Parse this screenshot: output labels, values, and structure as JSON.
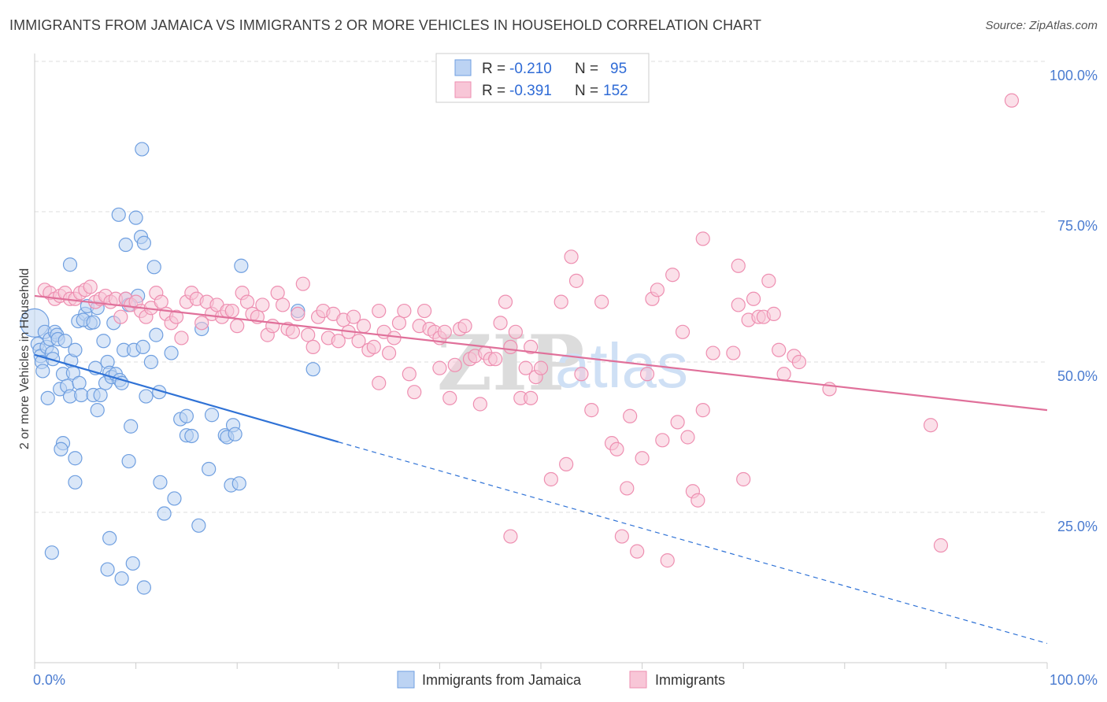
{
  "header": {
    "title": "IMMIGRANTS FROM JAMAICA VS IMMIGRANTS 2 OR MORE VEHICLES IN HOUSEHOLD CORRELATION CHART",
    "source": "Source: ZipAtlas.com"
  },
  "watermark": {
    "zip": "ZIP",
    "atlas": "atlas"
  },
  "colors": {
    "blue": "#6f9fe0",
    "blue_fill": "#bcd3f3",
    "blue_line": "#2f72d6",
    "pink": "#ee8fb1",
    "pink_fill": "#f8c6d7",
    "pink_line": "#e0709a",
    "grid": "#dddddd"
  },
  "legend": {
    "r_label": "R =",
    "n_label": "N =",
    "rows": [
      {
        "series": "jamaica",
        "r": "-0.210",
        "n": "95"
      },
      {
        "series": "immigrants",
        "r": "-0.391",
        "n": "152"
      }
    ]
  },
  "chart_data": {
    "type": "scatter",
    "title": "IMMIGRANTS FROM JAMAICA VS IMMIGRANTS 2 OR MORE VEHICLES IN HOUSEHOLD CORRELATION CHART",
    "xlabel": "",
    "ylabel": "2 or more Vehicles in Household",
    "xlim": [
      0,
      100
    ],
    "ylim": [
      0,
      100
    ],
    "x_tick_labels": [
      {
        "value": 0,
        "label": "0.0%"
      },
      {
        "value": 100,
        "label": "100.0%"
      }
    ],
    "y_tick_labels": [
      {
        "value": 25,
        "label": "25.0%"
      },
      {
        "value": 50,
        "label": "50.0%"
      },
      {
        "value": 75,
        "label": "75.0%"
      },
      {
        "value": 100,
        "label": "100.0%"
      }
    ],
    "series": [
      {
        "name": "Immigrants from Jamaica",
        "color": "blue",
        "trend": {
          "x0": 0,
          "y0": 51.2,
          "x1": 30,
          "y1": 36.7,
          "dash_to": 100,
          "dash_y": 3.2
        },
        "points": [
          [
            0,
            56.5
          ],
          [
            0.3,
            53
          ],
          [
            0.5,
            52
          ],
          [
            0.6,
            51
          ],
          [
            0.7,
            50
          ],
          [
            0.8,
            48.5
          ],
          [
            1,
            55
          ],
          [
            1.2,
            52.5
          ],
          [
            1.3,
            44
          ],
          [
            1.5,
            53.8
          ],
          [
            1.7,
            51.5
          ],
          [
            1.8,
            50.5
          ],
          [
            2,
            55
          ],
          [
            2.2,
            54.5
          ],
          [
            2.3,
            53.8
          ],
          [
            2.5,
            45.5
          ],
          [
            2.8,
            48
          ],
          [
            3,
            53.5
          ],
          [
            3.2,
            46
          ],
          [
            3.5,
            44.3
          ],
          [
            3.6,
            50.2
          ],
          [
            3.8,
            48.2
          ],
          [
            4,
            52
          ],
          [
            4.3,
            56.8
          ],
          [
            4.4,
            46.5
          ],
          [
            4.6,
            44.5
          ],
          [
            5,
            58
          ],
          [
            5.2,
            59.3
          ],
          [
            5.5,
            56.5
          ],
          [
            5.8,
            44.5
          ],
          [
            6,
            49
          ],
          [
            6.2,
            42
          ],
          [
            6.5,
            44.5
          ],
          [
            6.8,
            53.5
          ],
          [
            7,
            46.5
          ],
          [
            7.2,
            50
          ],
          [
            7.4,
            48.2
          ],
          [
            7.6,
            47.5
          ],
          [
            7.8,
            56.5
          ],
          [
            8,
            48
          ],
          [
            8.4,
            47
          ],
          [
            8.6,
            46.5
          ],
          [
            8.8,
            52
          ],
          [
            9,
            60.5
          ],
          [
            9.3,
            59.5
          ],
          [
            9.5,
            39.3
          ],
          [
            9.8,
            52
          ],
          [
            10.2,
            61
          ],
          [
            10.7,
            52.5
          ],
          [
            11,
            44.3
          ],
          [
            11.5,
            50
          ],
          [
            12,
            54.5
          ],
          [
            12.3,
            45
          ],
          [
            13.5,
            51.5
          ],
          [
            14.4,
            40.5
          ],
          [
            15,
            41
          ],
          [
            15,
            37.8
          ],
          [
            15.5,
            37.7
          ],
          [
            16.5,
            55.5
          ],
          [
            17.5,
            41.2
          ],
          [
            17.2,
            32.2
          ],
          [
            18.8,
            37.8
          ],
          [
            19,
            37.5
          ],
          [
            19.4,
            29.5
          ],
          [
            19.6,
            39.5
          ],
          [
            19.8,
            38
          ],
          [
            20.2,
            29.8
          ],
          [
            20.4,
            66
          ],
          [
            3.5,
            66.2
          ],
          [
            4.8,
            57
          ],
          [
            5.8,
            56.6
          ],
          [
            6.2,
            59
          ],
          [
            8.3,
            74.5
          ],
          [
            9,
            69.5
          ],
          [
            10,
            74
          ],
          [
            10.5,
            70.8
          ],
          [
            10.8,
            69.8
          ],
          [
            11.8,
            65.8
          ],
          [
            10.6,
            85.4
          ],
          [
            2.8,
            36.5
          ],
          [
            2.6,
            35.5
          ],
          [
            4,
            34
          ],
          [
            4,
            30
          ],
          [
            9.3,
            33.5
          ],
          [
            12.4,
            30
          ],
          [
            12.8,
            24.8
          ],
          [
            13.8,
            27.3
          ],
          [
            16.2,
            22.8
          ],
          [
            7.4,
            20.7
          ],
          [
            1.7,
            18.3
          ],
          [
            7.2,
            15.5
          ],
          [
            8.6,
            14
          ],
          [
            9.7,
            16.5
          ],
          [
            10.8,
            12.5
          ],
          [
            26,
            58.5
          ],
          [
            27.5,
            48.8
          ]
        ]
      },
      {
        "name": "Immigrants",
        "color": "pink",
        "trend": {
          "x0": 0,
          "y0": 61,
          "x1": 100,
          "y1": 42
        },
        "points": [
          [
            1,
            62
          ],
          [
            1.5,
            61.5
          ],
          [
            2,
            60.5
          ],
          [
            2.5,
            61
          ],
          [
            3,
            61.5
          ],
          [
            3.5,
            60.5
          ],
          [
            4,
            60.5
          ],
          [
            4.5,
            61.5
          ],
          [
            5,
            62
          ],
          [
            5.5,
            62.5
          ],
          [
            6,
            60
          ],
          [
            6.5,
            60.5
          ],
          [
            7,
            61
          ],
          [
            7.5,
            60
          ],
          [
            8,
            60.5
          ],
          [
            8.5,
            57.5
          ],
          [
            9,
            60.5
          ],
          [
            9.5,
            59.5
          ],
          [
            10,
            60
          ],
          [
            10.5,
            58.5
          ],
          [
            11,
            57.5
          ],
          [
            11.5,
            59
          ],
          [
            12,
            61.5
          ],
          [
            12.5,
            60
          ],
          [
            13,
            58
          ],
          [
            13.5,
            56.5
          ],
          [
            14,
            57.5
          ],
          [
            14.5,
            54
          ],
          [
            15,
            60
          ],
          [
            15.5,
            61.5
          ],
          [
            16,
            60.5
          ],
          [
            16.5,
            56.5
          ],
          [
            17,
            60
          ],
          [
            17.5,
            58
          ],
          [
            18,
            59.5
          ],
          [
            18.5,
            57.5
          ],
          [
            19,
            58.5
          ],
          [
            19.5,
            58.5
          ],
          [
            20,
            56
          ],
          [
            20.5,
            61.5
          ],
          [
            21,
            60
          ],
          [
            21.5,
            58
          ],
          [
            22,
            57.5
          ],
          [
            22.5,
            59.5
          ],
          [
            23,
            54.5
          ],
          [
            23.5,
            56
          ],
          [
            24,
            61.5
          ],
          [
            24.5,
            59.5
          ],
          [
            25,
            55.5
          ],
          [
            25.5,
            55
          ],
          [
            26,
            58
          ],
          [
            26.5,
            63
          ],
          [
            27,
            54.5
          ],
          [
            27.5,
            52.5
          ],
          [
            28,
            57.5
          ],
          [
            28.5,
            58.5
          ],
          [
            29,
            54
          ],
          [
            29.5,
            58
          ],
          [
            30,
            53.5
          ],
          [
            30.5,
            57
          ],
          [
            31,
            55
          ],
          [
            31.5,
            57.5
          ],
          [
            32,
            53.5
          ],
          [
            32.5,
            56
          ],
          [
            33,
            52
          ],
          [
            33.5,
            52.5
          ],
          [
            34,
            58.5
          ],
          [
            34.5,
            55
          ],
          [
            35,
            51.5
          ],
          [
            35.5,
            54
          ],
          [
            36,
            56.5
          ],
          [
            36.5,
            58.5
          ],
          [
            37,
            48
          ],
          [
            37.5,
            45
          ],
          [
            38,
            56
          ],
          [
            38.5,
            58.5
          ],
          [
            39,
            55.5
          ],
          [
            39.5,
            55
          ],
          [
            40,
            54
          ],
          [
            40.5,
            55
          ],
          [
            41,
            44
          ],
          [
            41.5,
            49.5
          ],
          [
            42,
            55.5
          ],
          [
            42.5,
            56
          ],
          [
            43,
            50.5
          ],
          [
            43.5,
            51
          ],
          [
            44,
            43
          ],
          [
            44.5,
            51.5
          ],
          [
            45,
            50.5
          ],
          [
            45.5,
            50.5
          ],
          [
            46,
            56.5
          ],
          [
            46.5,
            60
          ],
          [
            47,
            52.5
          ],
          [
            47.5,
            55
          ],
          [
            48,
            44
          ],
          [
            48.5,
            49
          ],
          [
            49,
            52.5
          ],
          [
            49.5,
            47.5
          ],
          [
            50,
            49
          ],
          [
            52,
            60
          ],
          [
            53,
            67.5
          ],
          [
            53.5,
            63.5
          ],
          [
            54,
            48
          ],
          [
            55,
            42
          ],
          [
            56,
            60
          ],
          [
            57,
            36.5
          ],
          [
            57.5,
            35.5
          ],
          [
            58.5,
            29
          ],
          [
            58.8,
            41
          ],
          [
            59.5,
            18.5
          ],
          [
            60,
            34
          ],
          [
            61,
            60.5
          ],
          [
            61.5,
            62
          ],
          [
            62,
            37
          ],
          [
            63,
            64.5
          ],
          [
            63.5,
            40
          ],
          [
            64,
            55
          ],
          [
            64.5,
            37.5
          ],
          [
            65,
            28.5
          ],
          [
            65.5,
            27
          ],
          [
            66,
            42
          ],
          [
            67,
            51.5
          ],
          [
            69,
            51.5
          ],
          [
            69.5,
            59.5
          ],
          [
            70,
            30.5
          ],
          [
            70.5,
            57
          ],
          [
            71,
            60.5
          ],
          [
            71.5,
            57.5
          ],
          [
            72,
            57.5
          ],
          [
            72.5,
            63.5
          ],
          [
            73,
            58
          ],
          [
            73.5,
            52
          ],
          [
            74,
            48
          ],
          [
            75,
            51
          ],
          [
            75.5,
            50
          ],
          [
            78.5,
            45.5
          ],
          [
            88.5,
            39.5
          ],
          [
            89.5,
            19.5
          ],
          [
            96.5,
            93.5
          ],
          [
            51,
            30.5
          ],
          [
            52.5,
            33
          ],
          [
            49,
            44
          ],
          [
            47,
            21
          ],
          [
            62.5,
            17
          ],
          [
            58,
            21
          ],
          [
            66,
            70.5
          ],
          [
            69.5,
            66
          ],
          [
            60.5,
            48
          ],
          [
            40,
            49
          ],
          [
            34,
            46.5
          ]
        ]
      }
    ]
  },
  "bottom_legend": {
    "items": [
      {
        "series": "jamaica",
        "label": "Immigrants from Jamaica"
      },
      {
        "series": "immigrants",
        "label": "Immigrants"
      }
    ]
  }
}
